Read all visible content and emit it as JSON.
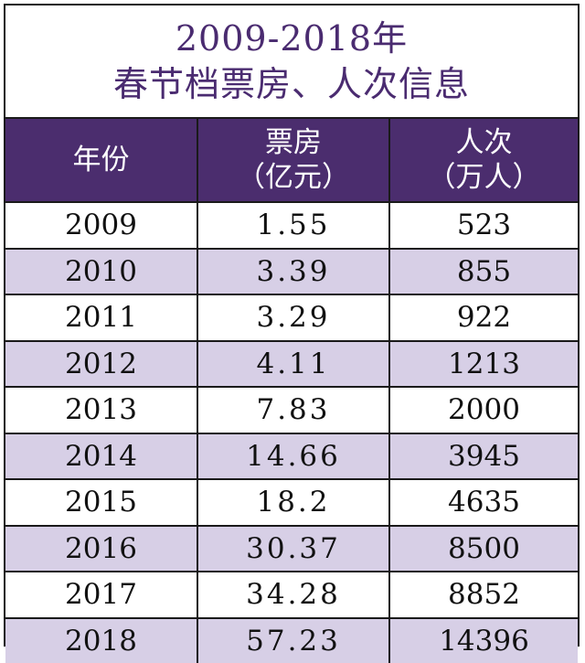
{
  "chart_data": {
    "type": "table",
    "title": "2009-2018年",
    "subtitle": "春节档票房、人次信息",
    "columns": [
      {
        "label": "年份",
        "unit": ""
      },
      {
        "label": "票房",
        "unit": "（亿元）"
      },
      {
        "label": "人次",
        "unit": "（万人）"
      }
    ],
    "rows": [
      {
        "year": "2009",
        "box_office": "1.55",
        "attendance": "523"
      },
      {
        "year": "2010",
        "box_office": "3.39",
        "attendance": "855"
      },
      {
        "year": "2011",
        "box_office": "3.29",
        "attendance": "922"
      },
      {
        "year": "2012",
        "box_office": "4.11",
        "attendance": "1213"
      },
      {
        "year": "2013",
        "box_office": "7.83",
        "attendance": "2000"
      },
      {
        "year": "2014",
        "box_office": "14.66",
        "attendance": "3945"
      },
      {
        "year": "2015",
        "box_office": "18.2",
        "attendance": "4635"
      },
      {
        "year": "2016",
        "box_office": "30.37",
        "attendance": "8500"
      },
      {
        "year": "2017",
        "box_office": "34.28",
        "attendance": "8852"
      },
      {
        "year": "2018",
        "box_office": "57.23",
        "attendance": "14396"
      }
    ]
  },
  "colors": {
    "title_text": "#4a2b70",
    "header_bg": "#4b2d6e",
    "header_text": "#ffffff",
    "stripe_bg": "#d7cfe6",
    "border": "#1a1a1a"
  }
}
